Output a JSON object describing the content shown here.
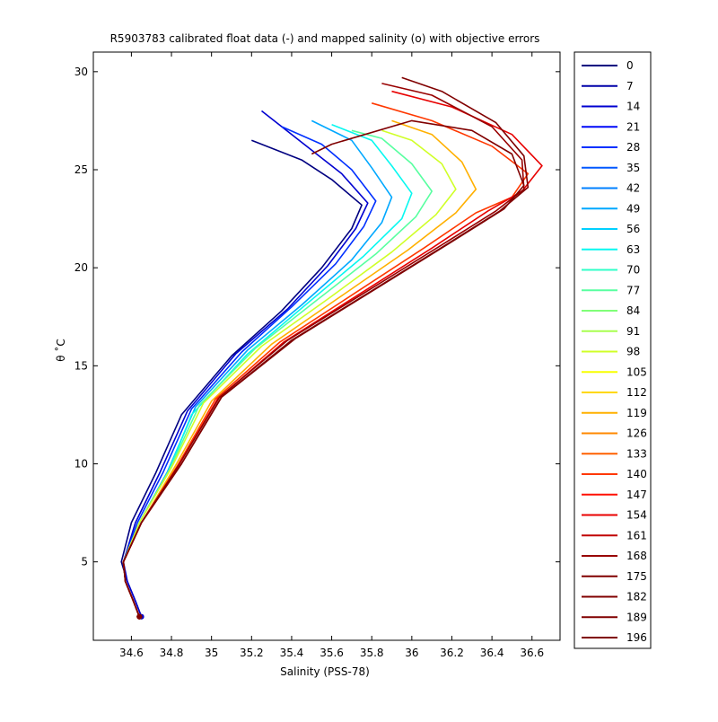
{
  "chart_data": {
    "type": "line",
    "title": "R5903783 calibrated float data (-) and mapped salinity (o) with objective errors",
    "xlabel": "Salinity (PSS-78)",
    "ylabel": "θ ˚C",
    "xlim": [
      34.41,
      36.74
    ],
    "ylim": [
      1,
      31
    ],
    "x_ticks": [
      "34.6",
      "34.8",
      "35",
      "35.2",
      "35.4",
      "35.6",
      "35.8",
      "36",
      "36.2",
      "36.4",
      "36.6"
    ],
    "y_ticks": [
      "5",
      "10",
      "15",
      "20",
      "25",
      "30"
    ],
    "grid": false,
    "legend_position": "outside-right",
    "legend": [
      "0",
      "7",
      "14",
      "21",
      "28",
      "35",
      "42",
      "49",
      "56",
      "63",
      "70",
      "77",
      "84",
      "91",
      "98",
      "105",
      "112",
      "119",
      "126",
      "133",
      "140",
      "147",
      "154",
      "161",
      "168",
      "175",
      "182",
      "189",
      "196"
    ],
    "legend_colors": [
      "#000080",
      "#0000a8",
      "#0000d0",
      "#0008f8",
      "#0030ff",
      "#0058ff",
      "#0080ff",
      "#00a8ff",
      "#00d0ff",
      "#08f8f0",
      "#30ffc8",
      "#58ffa0",
      "#80ff78",
      "#a8ff50",
      "#d0ff28",
      "#f8ff00",
      "#ffd800",
      "#ffb000",
      "#ff8800",
      "#ff6000",
      "#ff3800",
      "#ff1000",
      "#e80000",
      "#c00000",
      "#980000",
      "#800000",
      "#800000",
      "#800000",
      "#800000"
    ],
    "series": [
      {
        "name": "0",
        "x": [
          34.65,
          34.62,
          34.58,
          34.55,
          34.6,
          34.72,
          34.85,
          35.1,
          35.35,
          35.55,
          35.7,
          35.75,
          35.6,
          35.45,
          35.2
        ],
        "y": [
          2.2,
          3.0,
          4.0,
          5.0,
          7.0,
          9.5,
          12.5,
          15.5,
          17.8,
          20.0,
          22.0,
          23.2,
          24.5,
          25.5,
          26.5
        ]
      },
      {
        "name": "14",
        "x": [
          34.65,
          34.62,
          34.58,
          34.56,
          34.62,
          34.74,
          34.88,
          35.12,
          35.38,
          35.58,
          35.72,
          35.78,
          35.65,
          35.5,
          35.25
        ],
        "y": [
          2.2,
          3.0,
          4.0,
          5.0,
          7.0,
          9.5,
          12.7,
          15.6,
          17.9,
          20.1,
          22.0,
          23.3,
          24.8,
          26.0,
          28.0
        ]
      },
      {
        "name": "28",
        "x": [
          34.64,
          34.61,
          34.57,
          34.56,
          34.63,
          34.76,
          34.9,
          35.15,
          35.4,
          35.62,
          35.76,
          35.82,
          35.7,
          35.55,
          35.35
        ],
        "y": [
          2.2,
          3.0,
          4.0,
          5.0,
          7.0,
          9.6,
          12.8,
          15.7,
          18.0,
          20.2,
          22.1,
          23.4,
          25.0,
          26.3,
          27.2
        ]
      },
      {
        "name": "49",
        "x": [
          34.64,
          34.61,
          34.57,
          34.56,
          34.64,
          34.78,
          34.92,
          35.18,
          35.45,
          35.7,
          35.85,
          35.9,
          35.8,
          35.7,
          35.5
        ],
        "y": [
          2.2,
          3.0,
          4.0,
          5.0,
          7.0,
          9.6,
          12.9,
          15.8,
          18.1,
          20.4,
          22.3,
          23.6,
          25.1,
          26.5,
          27.5
        ]
      },
      {
        "name": "63",
        "x": [
          34.64,
          34.61,
          34.57,
          34.56,
          34.64,
          34.78,
          34.9,
          35.18,
          35.48,
          35.76,
          35.95,
          36.0,
          35.9,
          35.8,
          35.6
        ],
        "y": [
          2.2,
          3.0,
          4.0,
          5.0,
          7.0,
          9.5,
          12.5,
          15.6,
          18.2,
          20.6,
          22.5,
          23.8,
          25.2,
          26.5,
          27.3
        ]
      },
      {
        "name": "77",
        "x": [
          34.64,
          34.61,
          34.57,
          34.56,
          34.64,
          34.79,
          34.94,
          35.22,
          35.52,
          35.82,
          36.02,
          36.1,
          36.0,
          35.85,
          35.7
        ],
        "y": [
          2.2,
          3.0,
          4.0,
          5.0,
          7.0,
          9.7,
          13.0,
          15.9,
          18.3,
          20.7,
          22.6,
          23.9,
          25.3,
          26.6,
          27.0
        ]
      },
      {
        "name": "98",
        "x": [
          34.64,
          34.61,
          34.57,
          34.56,
          34.64,
          34.8,
          34.96,
          35.25,
          35.58,
          35.9,
          36.12,
          36.22,
          36.15,
          36.0,
          35.85
        ],
        "y": [
          2.2,
          3.0,
          4.0,
          5.0,
          7.0,
          9.8,
          13.1,
          16.0,
          18.4,
          20.8,
          22.7,
          24.0,
          25.3,
          26.5,
          27.0
        ]
      },
      {
        "name": "119",
        "x": [
          34.64,
          34.61,
          34.57,
          34.56,
          34.65,
          34.82,
          35.0,
          35.3,
          35.64,
          35.98,
          36.22,
          36.32,
          36.25,
          36.1,
          35.9
        ],
        "y": [
          2.2,
          3.0,
          4.0,
          5.0,
          7.0,
          9.9,
          13.2,
          16.1,
          18.5,
          20.9,
          22.8,
          24.0,
          25.4,
          26.8,
          27.5
        ]
      },
      {
        "name": "140",
        "x": [
          34.64,
          34.61,
          34.57,
          34.56,
          34.65,
          34.83,
          35.02,
          35.34,
          35.7,
          36.06,
          36.32,
          36.5,
          36.58,
          36.4,
          36.1,
          35.8
        ],
        "y": [
          2.2,
          3.0,
          4.0,
          5.0,
          7.0,
          9.9,
          13.3,
          16.2,
          18.6,
          21.0,
          22.8,
          23.6,
          24.8,
          26.2,
          27.5,
          28.4
        ]
      },
      {
        "name": "154",
        "x": [
          34.64,
          34.61,
          34.57,
          34.56,
          34.65,
          34.84,
          35.03,
          35.36,
          35.73,
          36.1,
          36.38,
          36.55,
          36.65,
          36.5,
          36.2,
          35.9
        ],
        "y": [
          2.2,
          3.0,
          4.0,
          5.0,
          7.0,
          10.0,
          13.3,
          16.2,
          18.6,
          21.0,
          22.9,
          23.9,
          25.2,
          26.8,
          28.2,
          29.0
        ]
      },
      {
        "name": "168",
        "x": [
          34.64,
          34.61,
          34.57,
          34.56,
          34.65,
          34.84,
          35.04,
          35.38,
          35.76,
          36.14,
          36.42,
          36.56,
          36.55,
          36.4,
          36.1,
          35.85
        ],
        "y": [
          2.2,
          3.0,
          4.0,
          5.0,
          7.0,
          10.0,
          13.4,
          16.3,
          18.7,
          21.1,
          22.9,
          24.0,
          25.5,
          27.2,
          28.8,
          29.4
        ]
      },
      {
        "name": "182",
        "x": [
          34.64,
          34.61,
          34.57,
          34.56,
          34.65,
          34.85,
          35.05,
          35.4,
          35.78,
          36.16,
          36.44,
          36.58,
          36.56,
          36.42,
          36.15,
          35.95
        ],
        "y": [
          2.2,
          3.0,
          4.0,
          5.0,
          7.0,
          10.0,
          13.4,
          16.3,
          18.7,
          21.1,
          22.9,
          24.1,
          25.7,
          27.4,
          29.0,
          29.7
        ]
      },
      {
        "name": "196",
        "x": [
          34.64,
          34.61,
          34.57,
          34.56,
          34.65,
          34.85,
          35.05,
          35.42,
          35.8,
          36.18,
          36.46,
          36.56,
          36.5,
          36.3,
          36.0,
          35.6,
          35.5
        ],
        "y": [
          2.2,
          3.0,
          4.0,
          5.0,
          7.0,
          10.0,
          13.4,
          16.4,
          18.8,
          21.2,
          23.0,
          24.2,
          25.8,
          27.0,
          27.5,
          26.3,
          25.8
        ]
      }
    ]
  }
}
